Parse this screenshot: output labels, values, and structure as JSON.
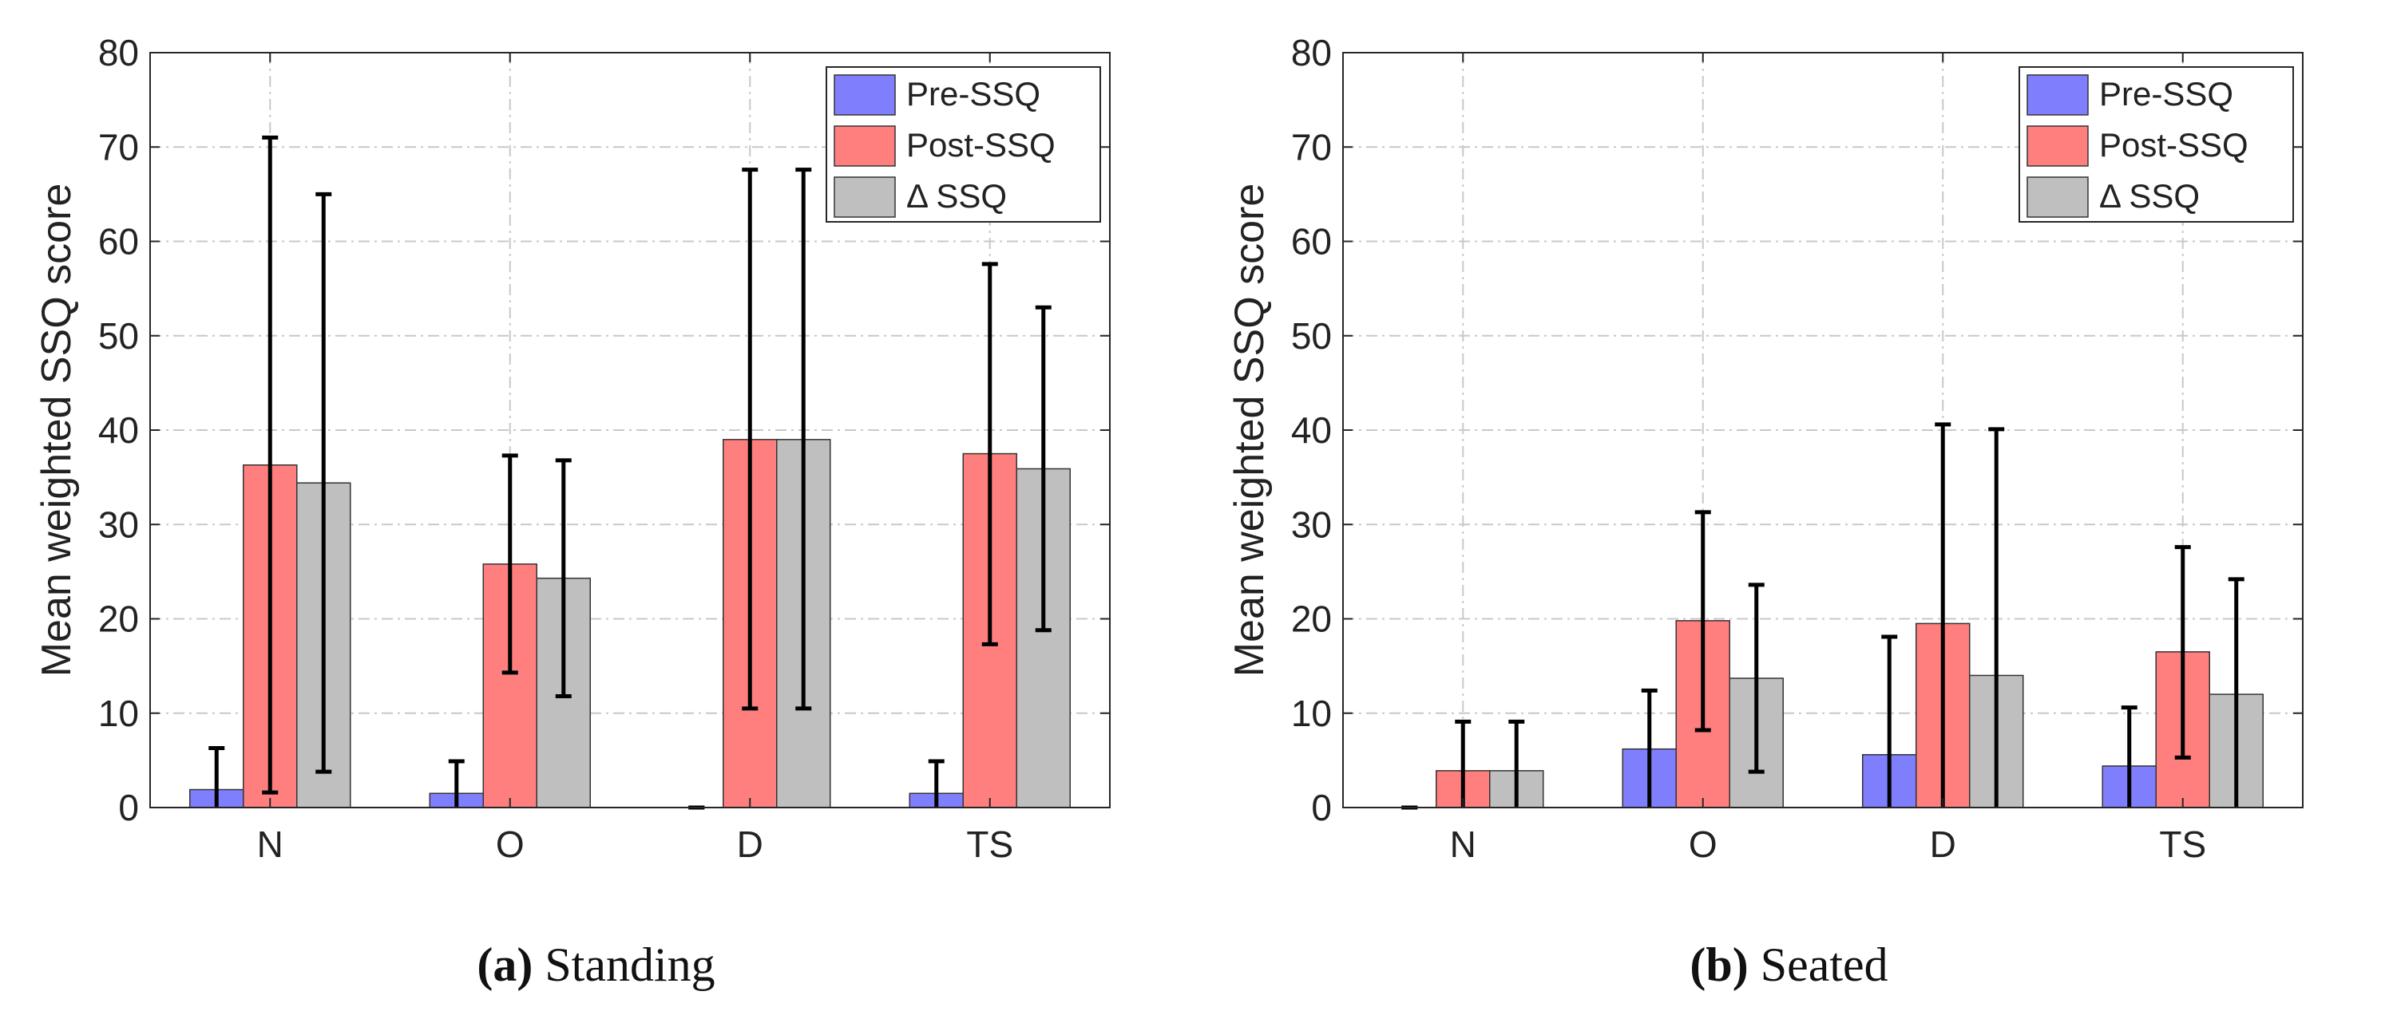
{
  "colors": {
    "pre": "#7f7ffe",
    "post": "#ff7f7f",
    "delta": "#bfbfbf",
    "error": "#000000",
    "grid": "#c8c8c8",
    "axis": "#262626"
  },
  "chart_data": [
    {
      "type": "bar",
      "categories": [
        "N",
        "O",
        "D",
        "TS"
      ],
      "ylabel": "Mean weighted SSQ score",
      "ylim": [
        0,
        80
      ],
      "yticks": [
        0,
        10,
        20,
        30,
        40,
        50,
        60,
        70,
        80
      ],
      "grid": true,
      "legend_position": "top-right",
      "error_bars": true,
      "series": [
        {
          "name": "Pre-SSQ",
          "color": "#7f7ffe",
          "values": [
            1.9,
            1.5,
            0,
            1.5
          ],
          "err_low": [
            0,
            0,
            0,
            0
          ],
          "err_high": [
            6.3,
            4.9,
            0,
            4.9
          ]
        },
        {
          "name": "Post-SSQ",
          "color": "#ff7f7f",
          "values": [
            36.3,
            25.8,
            39.0,
            37.5
          ],
          "err_low": [
            1.6,
            14.3,
            10.5,
            17.3
          ],
          "err_high": [
            71.0,
            37.3,
            67.6,
            57.6
          ]
        },
        {
          "name": "Δ SSQ",
          "color": "#bfbfbf",
          "values": [
            34.4,
            24.3,
            39.0,
            35.9
          ],
          "err_low": [
            3.8,
            11.8,
            10.5,
            18.8
          ],
          "err_high": [
            65.0,
            36.8,
            67.6,
            53.0
          ]
        }
      ],
      "caption": {
        "letter": "(a)",
        "text": "Standing"
      }
    },
    {
      "type": "bar",
      "categories": [
        "N",
        "O",
        "D",
        "TS"
      ],
      "ylabel": "Mean weighted SSQ score",
      "ylim": [
        0,
        80
      ],
      "yticks": [
        0,
        10,
        20,
        30,
        40,
        50,
        60,
        70,
        80
      ],
      "grid": true,
      "legend_position": "top-right",
      "error_bars": true,
      "series": [
        {
          "name": "Pre-SSQ",
          "color": "#7f7ffe",
          "values": [
            0,
            6.2,
            5.6,
            4.4
          ],
          "err_low": [
            0,
            0,
            0,
            0
          ],
          "err_high": [
            0,
            12.4,
            18.1,
            10.6
          ]
        },
        {
          "name": "Post-SSQ",
          "color": "#ff7f7f",
          "values": [
            3.9,
            19.8,
            19.5,
            16.5
          ],
          "err_low": [
            0,
            8.2,
            0,
            5.3
          ],
          "err_high": [
            9.1,
            31.3,
            40.6,
            27.6
          ]
        },
        {
          "name": "Δ SSQ",
          "color": "#bfbfbf",
          "values": [
            3.9,
            13.7,
            14.0,
            12.0
          ],
          "err_low": [
            0,
            3.8,
            0,
            0
          ],
          "err_high": [
            9.1,
            23.6,
            40.1,
            24.2
          ]
        }
      ],
      "caption": {
        "letter": "(b)",
        "text": "Seated"
      }
    }
  ]
}
